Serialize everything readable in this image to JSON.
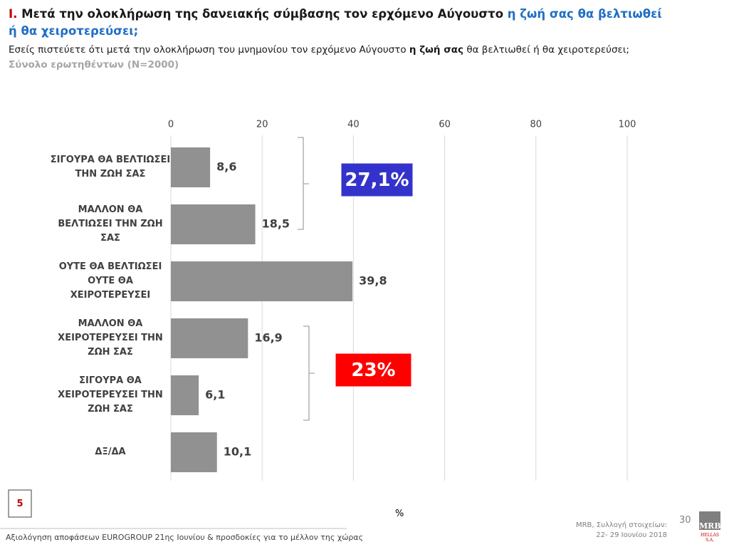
{
  "header": {
    "number": "Ι.",
    "title": "Μετά την ολοκλήρωση της δανειακής σύμβασης τον ερχόμενο Αύγουστο",
    "title_highlight": "η ζωή σας θα βελτιωθεί ή θα χειροτερεύσει;",
    "question_before": "Εσείς πιστεύετε ότι μετά την ολοκλήρωση του μνημονίου τον ερχόμενο Αύγουστο",
    "question_bold": "η ζωή σας",
    "question_after": "θα βελτιωθεί ή θα χειροτερεύσει;",
    "sample": "Σύνολο ερωτηθέντων (N=2000)"
  },
  "chart_data": {
    "type": "hbar",
    "categories": [
      "ΣΙΓΟΥΡΑ ΘΑ ΒΕΛΤΙΩΣΕΙ ΤΗΝ ΖΩΗ ΣΑΣ",
      "ΜΑΛΛΟΝ ΘΑ ΒΕΛΤΙΩΣΕΙ ΤΗΝ ΖΩΗ ΣΑΣ",
      "ΟΥΤΕ ΘΑ ΒΕΛΤΙΩΣΕΙ ΟΥΤΕ ΘΑ ΧΕΙΡΟΤΕΡΕΥΣΕΙ",
      "ΜΑΛΛΟΝ ΘΑ ΧΕΙΡΟΤΕΡΕΥΣΕΙ ΤΗΝ ΖΩΗ ΣΑΣ",
      "ΣΙΓΟΥΡΑ ΘΑ ΧΕΙΡΟΤΕΡΕΥΣΕΙ ΤΗΝ ΖΩΗ ΣΑΣ",
      "ΔΞ/ΔΑ"
    ],
    "values": [
      8.6,
      18.5,
      39.8,
      16.9,
      6.1,
      10.1
    ],
    "value_labels": [
      "8,6",
      "18,5",
      "39,8",
      "16,9",
      "6,1",
      "10,1"
    ],
    "color": "#919191",
    "xlim": [
      0,
      100
    ],
    "xticks": [
      0,
      20,
      40,
      60,
      80,
      100
    ],
    "grid": true,
    "xlabel": "%",
    "annotations": [
      {
        "text": "27,1%",
        "color": "#3333cc"
      },
      {
        "text": "23%",
        "color": "#ff0000"
      }
    ]
  },
  "footer": {
    "page_box": "5",
    "source_line1": "MRB, Συλλογή στοιχείων:",
    "source_line2": "22- 29 Ιουνίου 2018",
    "page_number": "30",
    "caption": "Αξιολόγηση αποφάσεων EUROGROUP 21ης Ιουνίου & προσδοκίες για το μέλλον της χώρας",
    "logo": "MRB",
    "logo_sub": "HELLAS S.A."
  }
}
